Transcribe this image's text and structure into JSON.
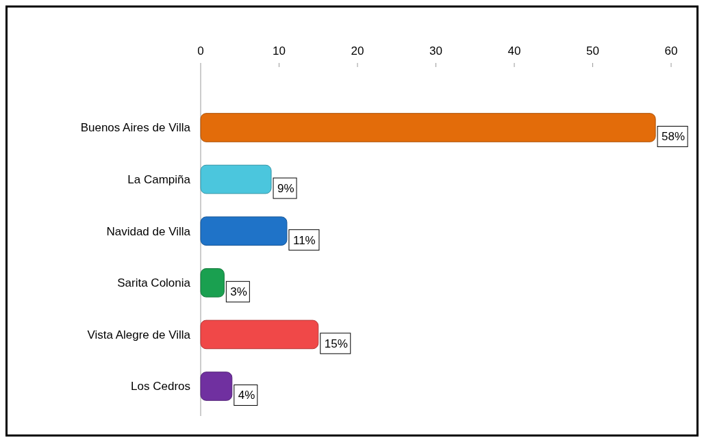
{
  "chart_data": {
    "type": "bar",
    "orientation": "horizontal",
    "categories": [
      "Buenos Aires de Villa",
      "La Campiña",
      "Navidad de Villa",
      "Sarita Colonia",
      "Vista Alegre de Villa",
      "Los Cedros"
    ],
    "values": [
      58,
      9,
      11,
      3,
      15,
      4
    ],
    "colors": [
      "#e36c0a",
      "#4bc6dd",
      "#1f73c8",
      "#1aa050",
      "#f04848",
      "#7030a0"
    ],
    "value_labels": [
      "58%",
      "9%",
      "11%",
      "3%",
      "15%",
      "4%"
    ],
    "xlim": [
      0,
      60
    ],
    "xticks": [
      0,
      10,
      20,
      30,
      40,
      50,
      60
    ]
  }
}
